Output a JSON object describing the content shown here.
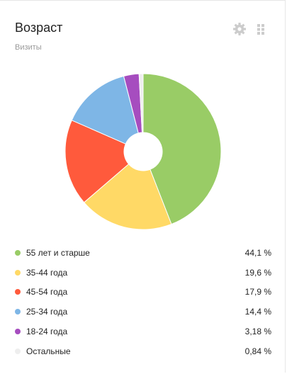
{
  "header": {
    "title": "Возраст",
    "subtitle": "Визиты",
    "settings_icon": "gear-icon",
    "drag_icon": "drag-handle-icon"
  },
  "chart_data": {
    "type": "pie",
    "categories": [
      "55 лет и старше",
      "35-44 года",
      "45-54 года",
      "25-34 года",
      "18-24 года",
      "Остальные"
    ],
    "values": [
      44.1,
      19.6,
      17.9,
      14.4,
      3.18,
      0.84
    ],
    "value_labels": [
      "44,1 %",
      "19,6 %",
      "17,9 %",
      "14,4 %",
      "3,18 %",
      "0,84 %"
    ],
    "colors": [
      "#99cc66",
      "#ffd966",
      "#ff5a3c",
      "#7eb6e6",
      "#a64dbf",
      "#eeeeee"
    ],
    "donut": true,
    "legend_position": "bottom"
  }
}
